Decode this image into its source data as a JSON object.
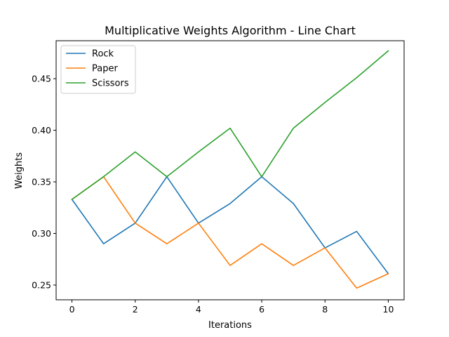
{
  "chart_data": {
    "type": "line",
    "title": "Multiplicative Weights Algorithm - Line Chart",
    "xlabel": "Iterations",
    "ylabel": "Weights",
    "xlim": [
      -0.5,
      10.5
    ],
    "ylim": [
      0.2357,
      0.4868
    ],
    "xticks": [
      0,
      2,
      4,
      6,
      8,
      10
    ],
    "xtick_labels": [
      "0",
      "2",
      "4",
      "6",
      "8",
      "10"
    ],
    "yticks": [
      0.25,
      0.3,
      0.35,
      0.4,
      0.45
    ],
    "ytick_labels": [
      "0.25",
      "0.30",
      "0.35",
      "0.40",
      "0.45"
    ],
    "grid": false,
    "legend_position": "top-left",
    "x": [
      0,
      1,
      2,
      3,
      4,
      5,
      6,
      7,
      8,
      9,
      10
    ],
    "series": [
      {
        "name": "Rock",
        "color": "#1f77b4",
        "values": [
          0.333,
          0.29,
          0.31,
          0.355,
          0.31,
          0.329,
          0.355,
          0.329,
          0.286,
          0.302,
          0.261
        ]
      },
      {
        "name": "Paper",
        "color": "#ff7f0e",
        "values": [
          0.333,
          0.355,
          0.31,
          0.29,
          0.31,
          0.269,
          0.29,
          0.269,
          0.286,
          0.247,
          0.261
        ]
      },
      {
        "name": "Scissors",
        "color": "#2ca02c",
        "values": [
          0.333,
          0.355,
          0.379,
          0.355,
          0.379,
          0.402,
          0.355,
          0.402,
          0.427,
          0.451,
          0.477
        ]
      }
    ]
  }
}
